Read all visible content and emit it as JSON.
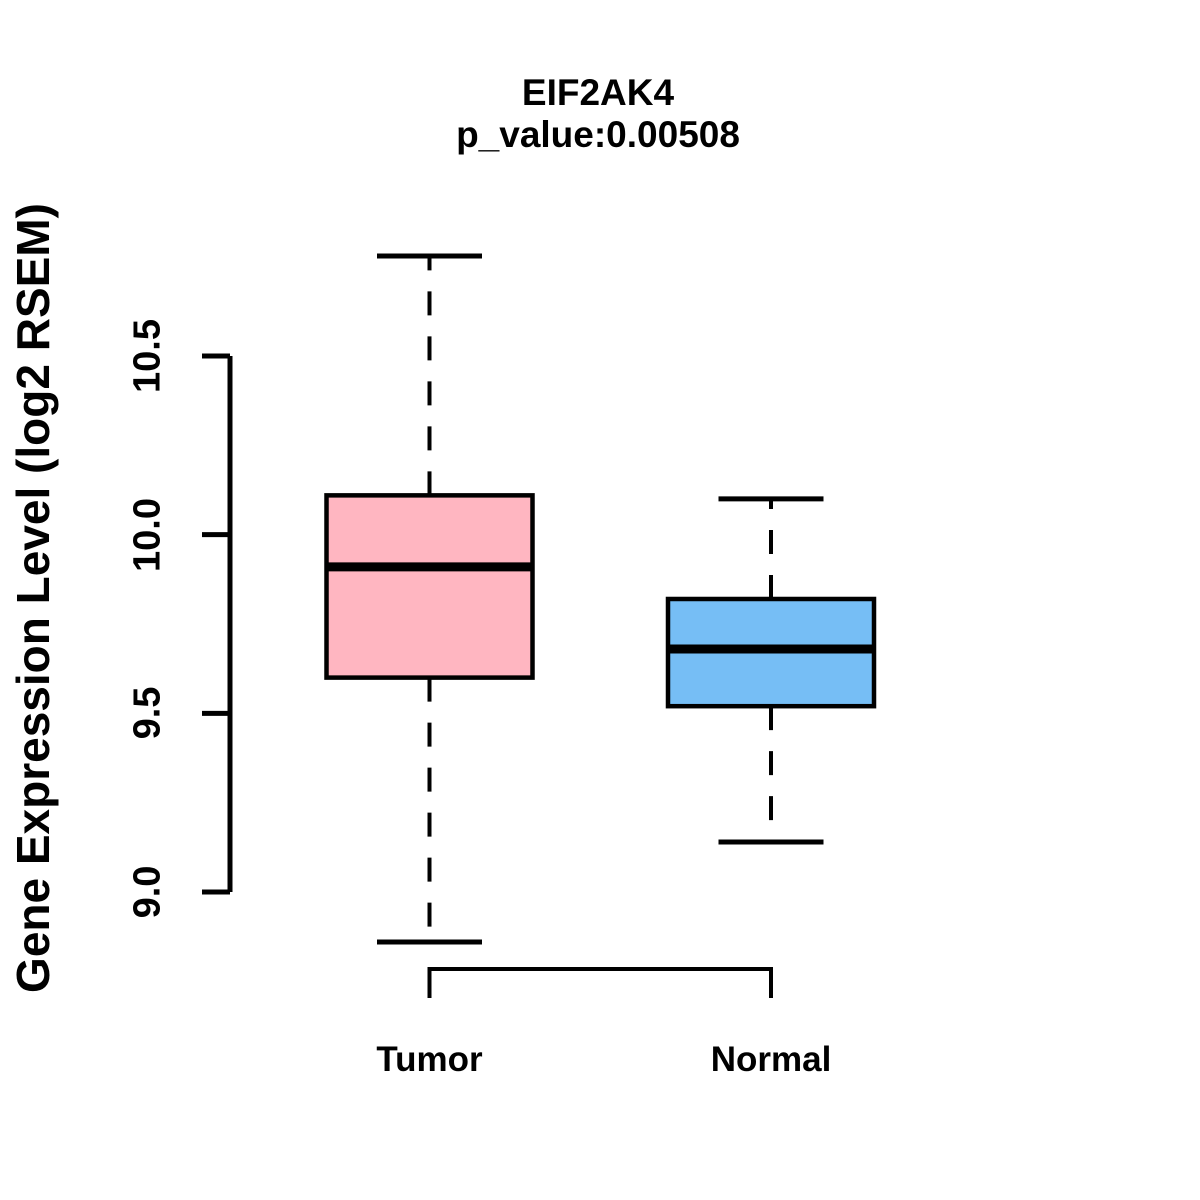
{
  "chart_data": {
    "type": "boxplot",
    "title": "EIF2AK4",
    "subtitle": "p_value:0.00508",
    "ylabel": "Gene Expression Level (log2 RSEM)",
    "xlabel": "",
    "yticks": [
      9.0,
      9.5,
      10.0,
      10.5
    ],
    "ylim": [
      8.8,
      10.85
    ],
    "grid": false,
    "legend": "none",
    "axis_color": "#000000",
    "groups": [
      {
        "label": "Tumor",
        "color": "#FFB6C1",
        "lower_whisker": 8.86,
        "q1": 9.6,
        "median": 9.91,
        "q3": 10.11,
        "upper_whisker": 10.78
      },
      {
        "label": "Normal",
        "color": "#76BEF5",
        "lower_whisker": 9.14,
        "q1": 9.52,
        "median": 9.68,
        "q3": 9.82,
        "upper_whisker": 10.1
      }
    ]
  }
}
